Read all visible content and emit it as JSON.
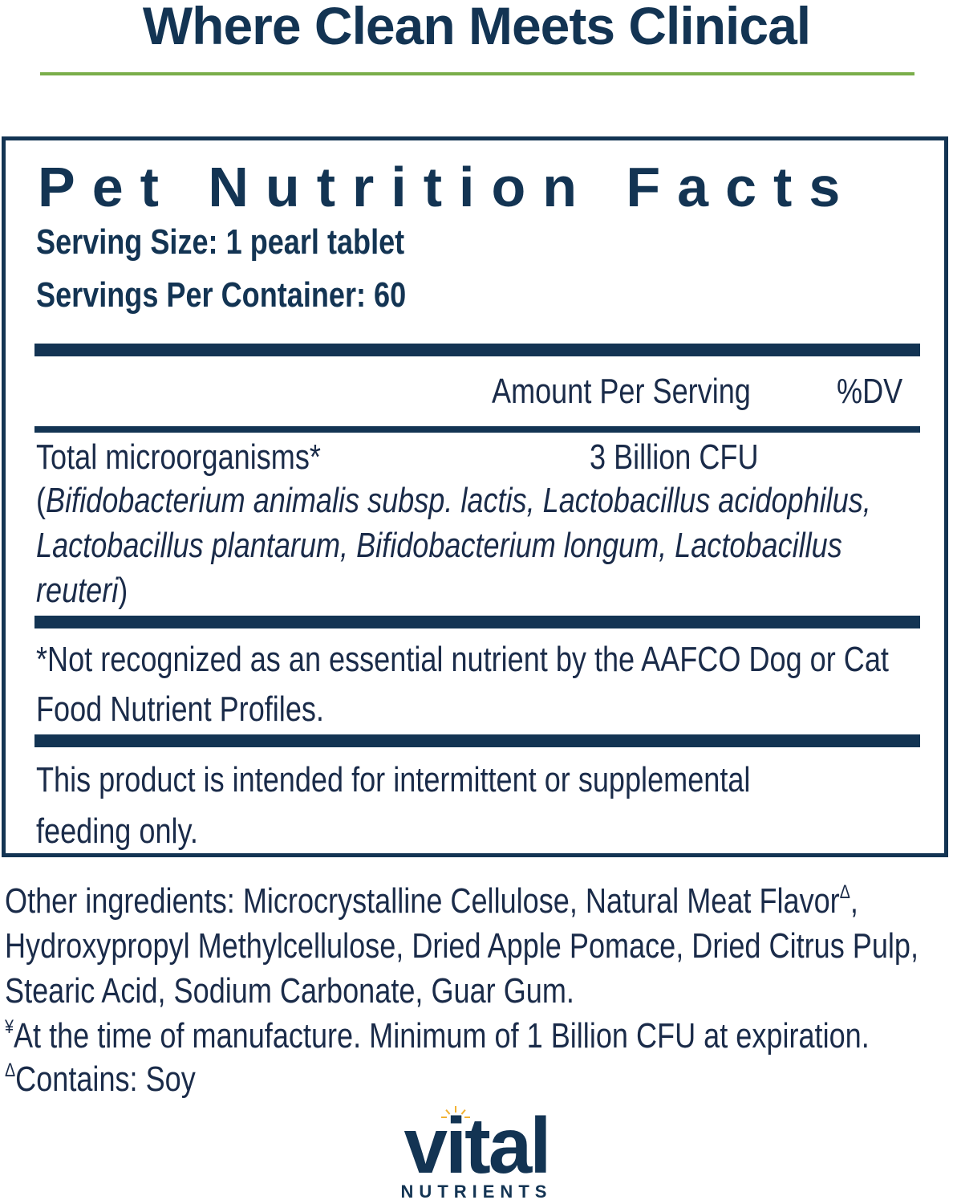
{
  "header": {
    "tagline": "Where Clean Meets Clinical"
  },
  "panel": {
    "title": "Pet Nutrition Facts",
    "serving_size": "Serving Size: 1 pearl tablet",
    "servings_per_container": "Servings Per Container: 60",
    "column_headers": {
      "amount": "Amount Per Serving",
      "dv": "%DV"
    },
    "row": {
      "name": "Total microorganisms*",
      "amount": "3 Billion CFU",
      "open_paren": "(",
      "species_line1": "Bifidobacterium animalis subsp. lactis, Lactobacillus acidophilus,",
      "species_line2": "Lactobacillus plantarum, Bifidobacterium longum, Lactobacillus",
      "species_line3": "reuteri",
      "close_paren": ")"
    },
    "footnote_line1": "*Not recognized as an essential nutrient by the AAFCO Dog or Cat",
    "footnote_line2": "Food Nutrient Profiles.",
    "feeding_line1": "This product is intended for intermittent or supplemental",
    "feeding_line2": "feeding only."
  },
  "other": {
    "line1": "Other ingredients:  Microcrystalline Cellulose, Natural Meat Flavor",
    "line1_mark": "Δ",
    "line1_end": ",",
    "line2": "Hydroxypropyl Methylcellulose, Dried Apple Pomace, Dried Citrus Pulp,",
    "line3": "Stearic Acid, Sodium Carbonate, Guar Gum.",
    "note1_mark": "¥",
    "note1": "At the time of manufacture. Minimum of 1 Billion CFU at expiration.",
    "note2_mark": "Δ",
    "note2": "Contains: Soy"
  },
  "logo": {
    "word": "vital",
    "sub": "NUTRIENTS",
    "sun_color": "#f2b233"
  },
  "colors": {
    "navy": "#133453",
    "green_rule": "#7aae4a"
  }
}
